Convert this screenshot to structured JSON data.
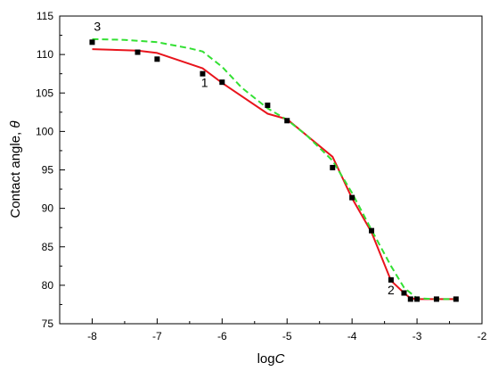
{
  "chart_data": {
    "type": "line",
    "xlabel_prefix": "log",
    "xlabel_italic": "C",
    "ylabel_prefix": "Contact angle, ",
    "ylabel_italic": "θ",
    "xlim": [
      -8.5,
      -2
    ],
    "ylim": [
      75,
      115
    ],
    "xticks": [
      -8,
      -7,
      -6,
      -5,
      -4,
      -3,
      -2
    ],
    "yticks": [
      75,
      80,
      85,
      90,
      95,
      100,
      105,
      110,
      115
    ],
    "grid": false,
    "series": [
      {
        "name": "1",
        "style": "solid",
        "color": "#e8141c",
        "x": [
          -8.0,
          -7.3,
          -7.0,
          -6.3,
          -6.0,
          -5.3,
          -5.0,
          -4.3,
          -4.0,
          -3.7,
          -3.4,
          -3.2,
          -3.1,
          -3.0,
          -2.7,
          -2.4
        ],
        "y": [
          110.7,
          110.5,
          110.2,
          108.2,
          106.3,
          102.3,
          101.6,
          96.7,
          91.3,
          86.9,
          80.6,
          79.0,
          78.3,
          78.2,
          78.2,
          78.2
        ]
      },
      {
        "name": "3",
        "style": "dashed",
        "color": "#33e033",
        "x": [
          -8.0,
          -7.5,
          -7.0,
          -6.5,
          -6.3,
          -6.0,
          -5.7,
          -5.3,
          -5.0,
          -4.7,
          -4.3,
          -4.0,
          -3.7,
          -3.4,
          -3.2,
          -3.0,
          -2.7,
          -2.4
        ],
        "y": [
          112.0,
          111.9,
          111.6,
          110.8,
          110.4,
          108.4,
          105.7,
          103.0,
          101.5,
          99.5,
          96.2,
          92.0,
          87.2,
          82.5,
          79.7,
          78.3,
          78.2,
          78.2
        ]
      },
      {
        "name": "2",
        "style": "markers",
        "color": "#000000",
        "x": [
          -8.0,
          -7.3,
          -7.0,
          -6.3,
          -6.0,
          -5.3,
          -5.0,
          -4.3,
          -4.0,
          -3.7,
          -3.4,
          -3.2,
          -3.1,
          -3.0,
          -2.7,
          -2.4
        ],
        "y": [
          111.6,
          110.3,
          109.4,
          107.5,
          106.4,
          103.4,
          101.4,
          95.3,
          91.4,
          87.1,
          80.7,
          79.0,
          78.2,
          78.2,
          78.2,
          78.2
        ]
      }
    ],
    "annotations": [
      {
        "text": "3",
        "x": -7.92,
        "y": 113.1
      },
      {
        "text": "1",
        "x": -6.27,
        "y": 105.8
      },
      {
        "text": "2",
        "x": -3.4,
        "y": 78.8
      }
    ]
  }
}
